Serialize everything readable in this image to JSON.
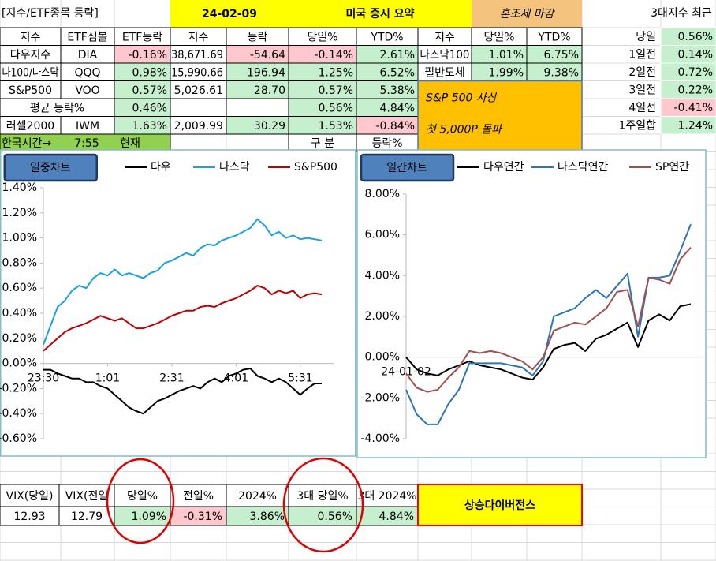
{
  "header": {
    "sheet_label": "[지수/ETF종목 등락]",
    "date": "24-02-09",
    "title": "미국 증시 요약",
    "summary": "혼조세 마감",
    "recent_label": "3대지수 최근"
  },
  "colors": {
    "up": "#c6efce",
    "down": "#ffc7ce"
  },
  "table": {
    "colored_columns": [
      2,
      4,
      5,
      6,
      8,
      9
    ],
    "headers": [
      "지수",
      "ETF심볼",
      "ETF등락",
      "지수",
      "등락",
      "당일%",
      "YTD%",
      "지수",
      "당일%",
      "YTD%"
    ],
    "rows": [
      [
        "다우지수",
        "DIA",
        "-0.16%",
        "38,671.69",
        "-54.64",
        "-0.14%",
        "2.61%",
        "나스닥100",
        "1.01%",
        "6.75%"
      ],
      [
        "나100/나스닥",
        "QQQ",
        "0.98%",
        "15,990.66",
        "196.94",
        "1.25%",
        "6.52%",
        "필반도체",
        "1.99%",
        "9.38%"
      ],
      [
        "S&P500",
        "VOO",
        "0.57%",
        "5,026.61",
        "28.70",
        "0.57%",
        "5.38%"
      ],
      [
        "평균 등락%",
        null,
        "0.46%",
        null,
        null,
        "0.56%",
        "4.84%"
      ],
      [
        "러셀2000",
        "IWM",
        "1.63%",
        "2,009.99",
        "30.29",
        "1.53%",
        "-0.84%"
      ]
    ],
    "time_row": [
      "한국시간→",
      "7:55",
      "현재"
    ],
    "footer_labels": [
      "구 분",
      "등락%"
    ]
  },
  "recent": [
    {
      "label": "당일",
      "value": "0.56%"
    },
    {
      "label": "1일전",
      "value": "0.14%"
    },
    {
      "label": "2일전",
      "value": "0.72%"
    },
    {
      "label": "3일전",
      "value": "0.22%"
    },
    {
      "label": "4일전",
      "value": "-0.41%"
    },
    {
      "label": "1주일합",
      "value": "1.24%"
    }
  ],
  "banner": {
    "lines": [
      "S&P 500 사상",
      "첫 5,000P 돌파"
    ]
  },
  "intraday_chart": {
    "type": "line",
    "button": "일중차트",
    "categories": [
      "23:30",
      null,
      null,
      null,
      null,
      null,
      null,
      null,
      null,
      "1:01",
      null,
      null,
      null,
      null,
      null,
      null,
      null,
      null,
      "2:31",
      null,
      null,
      null,
      null,
      null,
      null,
      null,
      null,
      "4:01",
      null,
      null,
      null,
      null,
      null,
      null,
      null,
      null,
      "5:31",
      null,
      null,
      null
    ],
    "series": [
      {
        "name": "다우",
        "color": "#000000",
        "values": [
          -0.05,
          -0.05,
          -0.08,
          -0.1,
          -0.12,
          -0.12,
          -0.15,
          -0.15,
          -0.18,
          -0.2,
          -0.25,
          -0.3,
          -0.35,
          -0.38,
          -0.4,
          -0.35,
          -0.3,
          -0.28,
          -0.25,
          -0.22,
          -0.2,
          -0.18,
          -0.2,
          -0.15,
          -0.12,
          -0.15,
          -0.1,
          -0.08,
          -0.05,
          -0.04,
          -0.1,
          -0.12,
          -0.15,
          -0.12,
          -0.15,
          -0.2,
          -0.25,
          -0.2,
          -0.16,
          -0.16
        ]
      },
      {
        "name": "나스닥",
        "color": "#1ba1e2",
        "values": [
          0.15,
          0.3,
          0.45,
          0.5,
          0.58,
          0.62,
          0.6,
          0.68,
          0.72,
          0.7,
          0.75,
          0.7,
          0.72,
          0.7,
          0.68,
          0.72,
          0.74,
          0.8,
          0.82,
          0.85,
          0.88,
          0.86,
          0.92,
          0.95,
          0.94,
          0.98,
          1.0,
          1.02,
          1.05,
          1.08,
          1.15,
          1.1,
          1.02,
          1.05,
          1.0,
          1.02,
          0.99,
          1.0,
          0.99,
          0.98
        ]
      },
      {
        "name": "S&P500",
        "color": "#c00000",
        "values": [
          0.1,
          0.15,
          0.2,
          0.25,
          0.28,
          0.3,
          0.32,
          0.35,
          0.38,
          0.36,
          0.34,
          0.36,
          0.32,
          0.28,
          0.28,
          0.3,
          0.32,
          0.35,
          0.38,
          0.4,
          0.42,
          0.42,
          0.45,
          0.46,
          0.45,
          0.48,
          0.5,
          0.52,
          0.55,
          0.58,
          0.62,
          0.6,
          0.55,
          0.58,
          0.56,
          0.58,
          0.52,
          0.55,
          0.56,
          0.55
        ]
      }
    ],
    "ylim": [
      -0.6,
      1.4
    ],
    "yticks": [
      {
        "value": 1.4,
        "label": "1.40%"
      },
      {
        "value": 1.2,
        "label": "1.20%"
      },
      {
        "value": 1.0,
        "label": "1.00%"
      },
      {
        "value": 0.8,
        "label": "0.80%"
      },
      {
        "value": 0.6,
        "label": "0.60%"
      },
      {
        "value": 0.4,
        "label": "0.40%"
      },
      {
        "value": 0.2,
        "label": "0.20%"
      },
      {
        "value": 0,
        "label": "0.00%"
      },
      {
        "value": -0.2,
        "label": "-0.20%"
      },
      {
        "value": -0.4,
        "label": "-0.40%"
      },
      {
        "value": -0.6,
        "label": "-0.60%"
      }
    ]
  },
  "daily_chart": {
    "type": "line",
    "button": "일간차트",
    "categories": [
      "24-01-02",
      null,
      null,
      null,
      null,
      null,
      null,
      null,
      null,
      null,
      null,
      null,
      null,
      null,
      null,
      null,
      null,
      null,
      null,
      null,
      null,
      null,
      null,
      null,
      null,
      null,
      null,
      null
    ],
    "series": [
      {
        "name": "다우연간",
        "color": "#000000",
        "values": [
          0.0,
          -0.6,
          -0.8,
          -0.9,
          -0.6,
          -0.4,
          -0.2,
          -0.4,
          -0.5,
          -0.6,
          -0.8,
          -1.0,
          -1.1,
          -0.5,
          0.4,
          0.6,
          0.7,
          0.3,
          0.9,
          1.1,
          1.4,
          1.7,
          0.5,
          1.8,
          2.1,
          1.8,
          2.5,
          2.6
        ]
      },
      {
        "name": "나스닥연간",
        "color": "#2e75b6",
        "values": [
          -1.6,
          -2.8,
          -3.3,
          -3.3,
          -2.3,
          -1.6,
          -0.3,
          -0.3,
          -0.3,
          -0.3,
          -0.4,
          -0.5,
          -0.9,
          -0.2,
          2.0,
          2.2,
          2.4,
          2.9,
          3.3,
          2.9,
          3.5,
          4.1,
          1.0,
          3.9,
          3.9,
          4.0,
          5.2,
          6.52
        ]
      },
      {
        "name": "SP연간",
        "color": "#a05050",
        "values": [
          -0.8,
          -1.5,
          -1.7,
          -1.6,
          -1.0,
          -0.5,
          0.3,
          0.2,
          0.3,
          0.2,
          0.0,
          -0.2,
          -0.6,
          0.0,
          1.3,
          1.5,
          1.7,
          1.6,
          2.0,
          2.4,
          3.2,
          3.3,
          1.5,
          3.9,
          3.8,
          3.6,
          4.8,
          5.38
        ]
      }
    ],
    "ylim": [
      -4,
      8
    ],
    "yticks": [
      {
        "value": 8,
        "label": "8.00%"
      },
      {
        "value": 6,
        "label": "6.00%"
      },
      {
        "value": 4,
        "label": "4.00%"
      },
      {
        "value": 2,
        "label": "2.00%"
      },
      {
        "value": 0,
        "label": "0.00%"
      },
      {
        "value": -2,
        "label": "-2.00%"
      },
      {
        "value": -4,
        "label": "-4.00%"
      }
    ]
  },
  "bottom": {
    "colored_columns": [
      2,
      3,
      4,
      5,
      6
    ],
    "headers": [
      "VIX(당일)",
      "VIX(전일",
      "당일%",
      "전일%",
      "2024%",
      "3대 당일%",
      "3대 2024%"
    ],
    "values": [
      "12.93",
      "12.79",
      "1.09%",
      "-0.31%",
      "3.86%",
      "0.56%",
      "4.84%"
    ],
    "badge": "상승다이버전스"
  }
}
